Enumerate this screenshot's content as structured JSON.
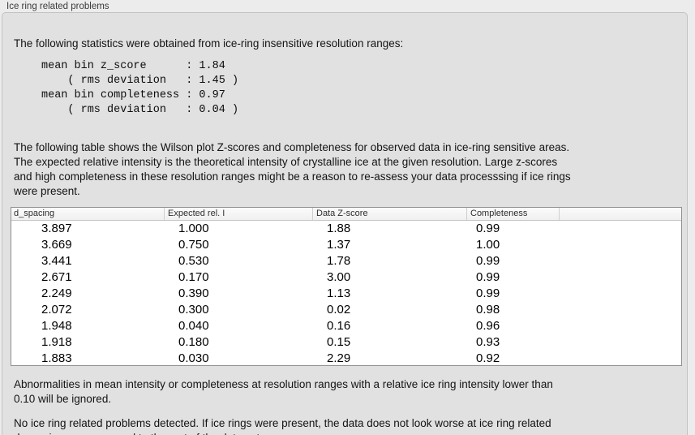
{
  "panel": {
    "title": "Ice ring related problems"
  },
  "intro": "The following statistics were obtained from ice-ring insensitive resolution ranges:",
  "stats_block": "mean bin z_score      : 1.84\n    ( rms deviation   : 1.45 )\nmean bin completeness : 0.97\n    ( rms deviation   : 0.04 )",
  "description": "The following table shows the Wilson plot Z-scores and completeness for observed data in ice-ring sensitive areas.\nThe expected relative intensity is the theoretical intensity of crystalline ice at the given resolution. Large z-scores\nand high completeness in these resolution ranges might be a reason to re-assess your data processsing if ice rings\nwere present.",
  "table": {
    "columns": [
      "d_spacing",
      "Expected rel. I",
      "Data Z-score",
      "Completeness",
      ""
    ],
    "rows": [
      [
        "3.897",
        "1.000",
        "1.88",
        "0.99"
      ],
      [
        "3.669",
        "0.750",
        "1.37",
        "1.00"
      ],
      [
        "3.441",
        "0.530",
        "1.78",
        "0.99"
      ],
      [
        "2.671",
        "0.170",
        "3.00",
        "0.99"
      ],
      [
        "2.249",
        "0.390",
        "1.13",
        "0.99"
      ],
      [
        "2.072",
        "0.300",
        "0.02",
        "0.98"
      ],
      [
        "1.948",
        "0.040",
        "0.16",
        "0.96"
      ],
      [
        "1.918",
        "0.180",
        "0.15",
        "0.93"
      ],
      [
        "1.883",
        "0.030",
        "2.29",
        "0.92"
      ]
    ]
  },
  "note_ignore": "Abnormalities in mean intensity or completeness at resolution ranges with a relative ice ring intensity lower than\n0.10 will be ignored.",
  "conclusion": "No ice ring related problems detected. If ice rings were present, the data does not look worse at ice ring related\nd_spacings as compared to the rest of the data set.",
  "colors": {
    "page_background": "#ececec",
    "panel_background": "#e1e1e1",
    "panel_border": "#c2c2c2",
    "table_border": "#919191",
    "table_background": "#ffffff",
    "text": "#141414"
  }
}
